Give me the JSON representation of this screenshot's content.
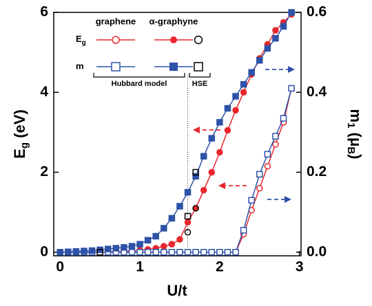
{
  "chart_data": {
    "type": "line",
    "x_label": "U/t",
    "y_label": [
      "E",
      "g",
      " (eV)"
    ],
    "y2_label": [
      "m",
      "1",
      " (",
      "μ",
      "B",
      ")"
    ],
    "xlim": [
      -0.08,
      3.02
    ],
    "xticks": [
      0,
      1,
      2,
      3
    ],
    "ylim": [
      -0.09,
      6
    ],
    "yticks": [
      0,
      2,
      4,
      6
    ],
    "y2lim": [
      -0.009,
      0.6
    ],
    "y2ticks": [
      {
        "value": 0,
        "label": "0.0"
      },
      0.2,
      0.4,
      0.6
    ],
    "vline": 1.6,
    "legend": {
      "columns": [
        "graphene",
        "α-graphyne"
      ],
      "rows": [
        [
          "E",
          "g"
        ],
        [
          "m"
        ]
      ],
      "groups": [
        "Hubbard model",
        "HSE"
      ]
    },
    "series": [
      {
        "color": "#e8262b",
        "marker": "circle",
        "filled": false,
        "axis": "y",
        "x": [
          0,
          0.1,
          0.2,
          0.3,
          0.4,
          0.5,
          0.6,
          0.7,
          0.8,
          0.9,
          1.0,
          1.1,
          1.2,
          1.3,
          1.4,
          1.5,
          1.6,
          1.7,
          1.8,
          1.9,
          2.0,
          2.1,
          2.2,
          2.3,
          2.4,
          2.5,
          2.6,
          2.7,
          2.8,
          2.9
        ],
        "values": [
          0,
          0,
          0,
          0,
          0,
          0,
          0,
          0,
          0,
          0,
          0,
          0,
          0,
          0,
          0,
          0,
          0,
          0,
          0,
          0,
          0,
          0,
          0,
          0.45,
          1.05,
          1.6,
          2.15,
          2.7,
          3.25,
          4.1
        ]
      },
      {
        "color": "#e8262b",
        "marker": "circle",
        "filled": true,
        "axis": "y",
        "x": [
          0,
          0.1,
          0.2,
          0.3,
          0.4,
          0.5,
          0.6,
          0.7,
          0.8,
          0.9,
          1.0,
          1.1,
          1.2,
          1.3,
          1.4,
          1.5,
          1.6,
          1.7,
          1.8,
          1.9,
          2.0,
          2.1,
          2.2,
          2.3,
          2.4,
          2.5,
          2.6,
          2.7,
          2.8,
          2.9
        ],
        "values": [
          0,
          0,
          0,
          0,
          0,
          0,
          0.01,
          0.01,
          0.02,
          0.03,
          0.05,
          0.07,
          0.1,
          0.15,
          0.2,
          0.32,
          0.75,
          1.1,
          1.55,
          2.0,
          2.5,
          3.05,
          3.55,
          4.0,
          4.45,
          4.85,
          5.2,
          5.55,
          5.75,
          5.95
        ]
      },
      {
        "color": "#2e52a8",
        "marker": "square",
        "filled": false,
        "axis": "y2",
        "x": [
          0,
          0.1,
          0.2,
          0.3,
          0.4,
          0.5,
          0.6,
          0.7,
          0.8,
          0.9,
          1.0,
          1.1,
          1.2,
          1.3,
          1.4,
          1.5,
          1.6,
          1.7,
          1.8,
          1.9,
          2.0,
          2.1,
          2.2,
          2.3,
          2.4,
          2.5,
          2.6,
          2.7,
          2.8,
          2.9
        ],
        "values": [
          0,
          0,
          0,
          0,
          0,
          0,
          0,
          0,
          0,
          0,
          0,
          0,
          0,
          0,
          0,
          0,
          0,
          0,
          0,
          0,
          0,
          0,
          0,
          0.055,
          0.13,
          0.195,
          0.245,
          0.29,
          0.335,
          0.41
        ]
      },
      {
        "color": "#2e52a8",
        "marker": "square",
        "filled": true,
        "axis": "y2",
        "x": [
          0,
          0.1,
          0.2,
          0.3,
          0.4,
          0.5,
          0.6,
          0.7,
          0.8,
          0.9,
          1.0,
          1.1,
          1.2,
          1.3,
          1.4,
          1.5,
          1.6,
          1.7,
          1.8,
          1.9,
          2.0,
          2.1,
          2.2,
          2.3,
          2.4,
          2.5,
          2.6,
          2.7,
          2.8,
          2.9
        ],
        "values": [
          0,
          0.001,
          0.002,
          0.003,
          0.004,
          0.006,
          0.008,
          0.01,
          0.012,
          0.015,
          0.02,
          0.03,
          0.04,
          0.06,
          0.085,
          0.115,
          0.15,
          0.19,
          0.24,
          0.285,
          0.325,
          0.36,
          0.39,
          0.42,
          0.45,
          0.48,
          0.51,
          0.535,
          0.565,
          0.6
        ]
      },
      {
        "color": "#000000",
        "marker": "circle",
        "filled": false,
        "axis": "y",
        "x": [
          1.6,
          1.7
        ],
        "values": [
          0.5,
          1.1
        ]
      },
      {
        "color": "#000000",
        "marker": "square",
        "filled": false,
        "axis": "y2",
        "x": [
          0.5,
          1.6,
          1.7
        ],
        "values": [
          0.0,
          0.09,
          0.2
        ]
      }
    ]
  }
}
